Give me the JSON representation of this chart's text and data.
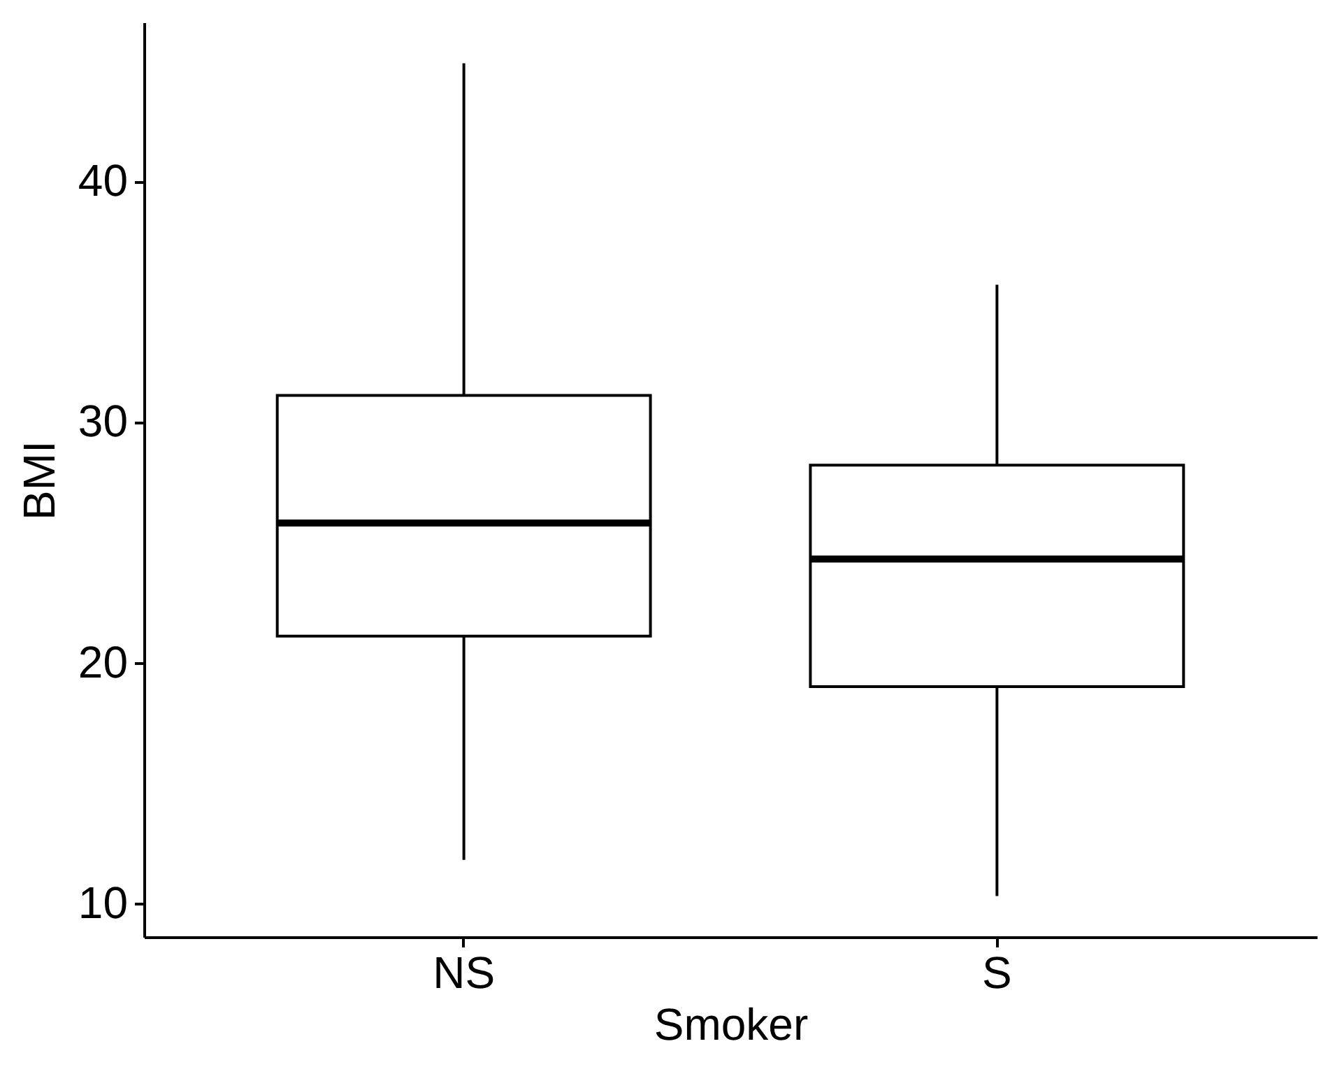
{
  "chart_data": {
    "type": "box",
    "xlabel": "Smoker",
    "ylabel": "BMI",
    "categories": [
      "NS",
      "S"
    ],
    "boxes": [
      {
        "low": 11.8,
        "q1": 21.1,
        "median": 25.8,
        "q3": 31.1,
        "high": 44.9
      },
      {
        "low": 10.3,
        "q1": 19.0,
        "median": 24.3,
        "q3": 28.2,
        "high": 35.7
      }
    ],
    "ylim": [
      8.6,
      46.6
    ],
    "yticks": [
      10,
      20,
      30,
      40
    ],
    "grid": false
  }
}
